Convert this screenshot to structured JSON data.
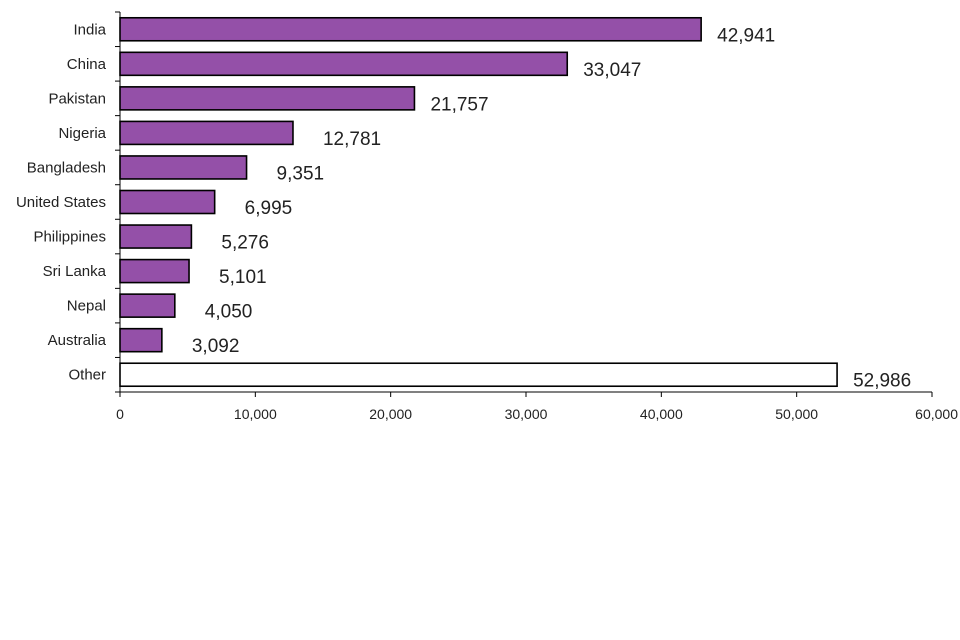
{
  "chart_data": {
    "type": "bar",
    "orientation": "horizontal",
    "title": "",
    "xlabel": "",
    "ylabel": "",
    "categories": [
      "India",
      "China",
      "Pakistan",
      "Nigeria",
      "Bangladesh",
      "United States",
      "Philippines",
      "Sri Lanka",
      "Nepal",
      "Australia",
      "Other"
    ],
    "values": [
      42941,
      33047,
      21757,
      12781,
      9351,
      6995,
      5276,
      5101,
      4050,
      3092,
      52986
    ],
    "value_labels": [
      "42,941",
      "33,047",
      "21,757",
      "12,781",
      "9,351",
      "6,995",
      "5,276",
      "5,101",
      "4,050",
      "3,092",
      "52,986"
    ],
    "xlim": [
      0,
      60000
    ],
    "xticks": [
      0,
      10000,
      20000,
      30000,
      40000,
      50000,
      60000
    ],
    "xtick_labels": [
      "0",
      "10,000",
      "20,000",
      "30,000",
      "40,000",
      "50,000",
      "60,000"
    ],
    "grid": false,
    "legend": "none",
    "colors": {
      "bar_fill": "#9450a8",
      "other_fill": "#ffffff",
      "bar_stroke": "#000000",
      "axis": "#000000"
    }
  }
}
